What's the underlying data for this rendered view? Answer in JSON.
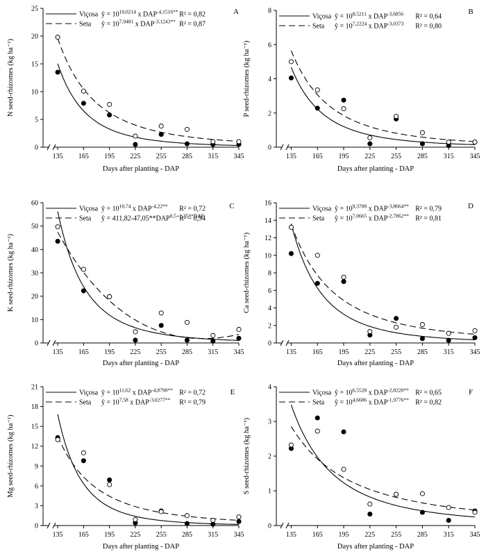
{
  "chart_data": [
    {
      "type": "scatter",
      "panel": "A",
      "ylabel": "N seed-rhizomes (kg ha⁻¹)",
      "xlabel": "Days after planting  - DAP",
      "x": [
        135,
        165,
        195,
        225,
        255,
        285,
        315,
        345
      ],
      "ylim": [
        0,
        25
      ],
      "yticks": [
        0,
        5,
        10,
        15,
        20,
        25
      ],
      "series": [
        {
          "name": "Viçosa",
          "marker": "filled",
          "line": "solid",
          "values": [
            13.5,
            7.9,
            5.8,
            0.5,
            2.3,
            0.6,
            0.5,
            0.5
          ],
          "model": "power",
          "log_a": 10.0214,
          "b": -4.1516,
          "equation": "ŷ = 10^10,0214 x DAP^-4,1516**",
          "r2": "R² = 0,82"
        },
        {
          "name": "Seta",
          "marker": "open",
          "line": "dashed",
          "values": [
            19.8,
            10.1,
            7.7,
            2.0,
            3.8,
            3.2,
            1.0,
            1.0
          ],
          "model": "power",
          "log_a": 7.9481,
          "b": -3.1243,
          "equation": "ŷ = 10^7,9481 x DAP^-3,1243**",
          "r2": "R² = 0,87"
        }
      ]
    },
    {
      "type": "scatter",
      "panel": "B",
      "ylabel": "P seed-rhizomes (kg ha⁻¹)",
      "xlabel": "Days after planting  - DAP",
      "x": [
        135,
        165,
        195,
        225,
        255,
        285,
        315,
        345
      ],
      "ylim": [
        0,
        8
      ],
      "yticks": [
        0,
        2,
        4,
        6,
        8
      ],
      "series": [
        {
          "name": "Viçosa",
          "marker": "filled",
          "line": "solid",
          "values": [
            4.05,
            2.28,
            2.75,
            0.2,
            1.65,
            0.2,
            0.1,
            0.3
          ],
          "model": "power",
          "log_a": 8.5211,
          "b": -3.6856,
          "equation": "ŷ = 10^8,5211 x DAP^-3,6856",
          "r2": "R² = 0,64"
        },
        {
          "name": "Seta",
          "marker": "open",
          "line": "dashed",
          "values": [
            5.0,
            3.35,
            2.25,
            0.55,
            1.8,
            0.85,
            0.3,
            0.3
          ],
          "model": "power",
          "log_a": 7.2224,
          "b": -3.0373,
          "equation": "ŷ = 10^7,2224 x DAP^-3,0373",
          "r2": "R² = 0,80"
        }
      ]
    },
    {
      "type": "scatter",
      "panel": "C",
      "ylabel": "K seed-rhizomes (kg ha⁻¹)",
      "xlabel": "Days after planting  - DAP",
      "x": [
        135,
        165,
        195,
        225,
        255,
        285,
        315,
        345
      ],
      "ylim": [
        0,
        60
      ],
      "yticks": [
        0,
        10,
        20,
        30,
        40,
        50,
        60
      ],
      "series": [
        {
          "name": "Viçosa",
          "marker": "filled",
          "line": "solid",
          "values": [
            43.5,
            22.3,
            19.8,
            1.2,
            7.5,
            1.2,
            0.8,
            2.0
          ],
          "model": "power",
          "log_a": 10.74,
          "b": -4.22,
          "equation": "ŷ = 10^10,74 x DAP^-4,22**",
          "r2": "R² = 0,72"
        },
        {
          "name": "Seta",
          "marker": "open",
          "line": "dashed",
          "values": [
            49.7,
            31.5,
            19.8,
            4.8,
            12.8,
            8.8,
            3.2,
            5.8
          ],
          "model": "root",
          "c0": 411.82,
          "c1": -47.05,
          "c2": 1.35,
          "equation": "ŷ = 411,82-47,05**DAP^0,5+1,35**DAP",
          "r2": "R² = 0,94"
        }
      ]
    },
    {
      "type": "scatter",
      "panel": "D",
      "ylabel": "Ca seed-rhizomes (kg ha⁻¹)",
      "xlabel": "Days after planting  - DAP",
      "x": [
        135,
        165,
        195,
        225,
        255,
        285,
        315,
        345
      ],
      "ylim": [
        0,
        16
      ],
      "yticks": [
        0,
        2,
        4,
        6,
        8,
        10,
        12,
        14,
        16
      ],
      "series": [
        {
          "name": "Viçosa",
          "marker": "filled",
          "line": "solid",
          "values": [
            10.2,
            6.8,
            7.0,
            0.9,
            2.8,
            0.5,
            0.3,
            0.6
          ],
          "model": "power",
          "log_a": 9.37,
          "b": -3.8664,
          "equation": "ŷ = 10^9,3700 x DAP^-3,8664**",
          "r2": "R² = 0,79"
        },
        {
          "name": "Seta",
          "marker": "open",
          "line": "dashed",
          "values": [
            13.2,
            10.0,
            7.5,
            1.3,
            1.8,
            2.1,
            1.1,
            1.4
          ],
          "model": "power",
          "log_a": 7.0665,
          "b": -2.7862,
          "equation": "ŷ = 10^7,0665 x DAP^-2,7862**",
          "r2": "R² = 0,81"
        }
      ]
    },
    {
      "type": "scatter",
      "panel": "E",
      "ylabel": "Mg seed-rhizomes (kg ha⁻¹)",
      "xlabel": "Days after planting  - DAP",
      "x": [
        135,
        165,
        195,
        225,
        255,
        285,
        315,
        345
      ],
      "ylim": [
        0,
        21
      ],
      "yticks": [
        0,
        3,
        6,
        9,
        12,
        15,
        18,
        21
      ],
      "series": [
        {
          "name": "Viçosa",
          "marker": "filled",
          "line": "solid",
          "values": [
            13.3,
            9.8,
            6.9,
            0.4,
            2.2,
            0.3,
            0.2,
            0.6
          ],
          "model": "power",
          "log_a": 11.62,
          "b": -4.879,
          "equation": "ŷ = 10^11,62 x DAP^-4,8790**",
          "r2": "R² = 0,72"
        },
        {
          "name": "Seta",
          "marker": "open",
          "line": "dashed",
          "values": [
            13.0,
            11.0,
            6.2,
            0.9,
            2.1,
            1.5,
            0.8,
            1.3
          ],
          "model": "power",
          "log_a": 7.58,
          "b": -3.0277,
          "equation": "ŷ = 10^7,58 x DAP^-3,0277**",
          "r2": "R² = 0,79"
        }
      ]
    },
    {
      "type": "scatter",
      "panel": "F",
      "ylabel": "S seed-rhizomes (kg ha⁻¹)",
      "xlabel": "Days after planting  - DAP",
      "x": [
        135,
        165,
        195,
        225,
        255,
        285,
        315,
        345
      ],
      "ylim": [
        0,
        4
      ],
      "yticks": [
        0,
        1,
        2,
        3,
        4
      ],
      "series": [
        {
          "name": "Viçosa",
          "marker": "filled",
          "line": "solid",
          "values": [
            2.22,
            3.1,
            2.7,
            0.33,
            0.9,
            0.38,
            0.15,
            0.42
          ],
          "model": "power",
          "log_a": 6.5528,
          "b": -2.822,
          "equation": "ŷ = 10^6,5528 x DAP^-2,8220**",
          "r2": "R² = 0,65"
        },
        {
          "name": "Seta",
          "marker": "open",
          "line": "dashed",
          "values": [
            2.32,
            2.72,
            1.62,
            0.62,
            0.9,
            0.92,
            0.52,
            0.38
          ],
          "model": "power",
          "log_a": 4.6686,
          "b": -1.9776,
          "equation": "ŷ = 10^4,6686 x DAP^-1,9776**",
          "r2": "R² = 0,82"
        }
      ]
    }
  ]
}
